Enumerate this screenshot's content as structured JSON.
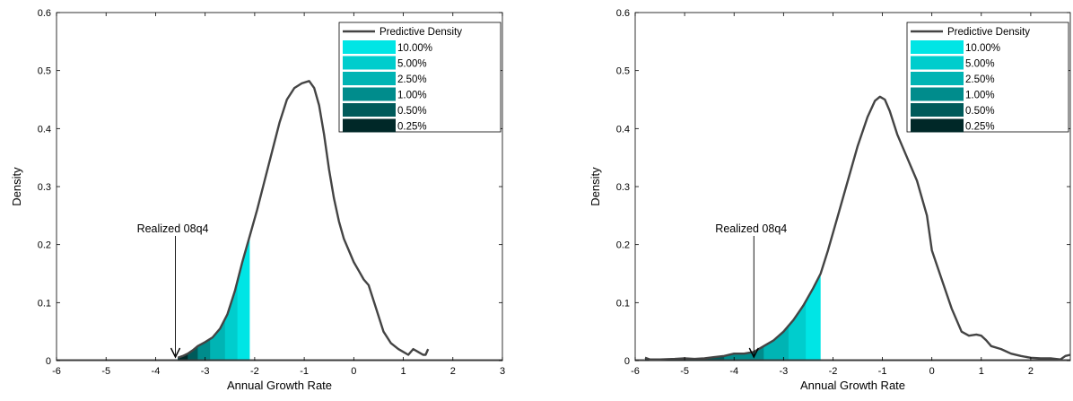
{
  "chart_data": [
    {
      "type": "area",
      "title": "",
      "xlabel": "Annual Growth Rate",
      "ylabel": "Density",
      "xlim": [
        -6,
        3
      ],
      "ylim": [
        0,
        0.6
      ],
      "xticks": [
        -6,
        -5,
        -4,
        -3,
        -2,
        -1,
        0,
        1,
        2,
        3
      ],
      "yticks": [
        0,
        0.1,
        0.2,
        0.3,
        0.4,
        0.5,
        0.6
      ],
      "xtick_labels": [
        "-6",
        "-5",
        "-4",
        "-3",
        "-2",
        "-1",
        "0",
        "1",
        "2",
        "3"
      ],
      "ytick_labels": [
        "0",
        "0.1",
        "0.2",
        "0.3",
        "0.4",
        "0.5",
        "0.6"
      ],
      "grid": false,
      "legend_position": "top-right",
      "legend_title": "Predictive Density",
      "series": [
        {
          "name": "Predictive Density",
          "color": "#444444",
          "x": [
            -3.55,
            -3.45,
            -3.35,
            -3.25,
            -3.15,
            -3.0,
            -2.85,
            -2.7,
            -2.55,
            -2.4,
            -2.25,
            -2.1,
            -1.95,
            -1.8,
            -1.65,
            -1.5,
            -1.35,
            -1.2,
            -1.05,
            -0.9,
            -0.8,
            -0.7,
            -0.6,
            -0.5,
            -0.4,
            -0.3,
            -0.2,
            -0.1,
            0.0,
            0.1,
            0.2,
            0.3,
            0.45,
            0.6,
            0.75,
            0.9,
            1.0,
            1.1,
            1.2,
            1.3,
            1.4,
            1.45,
            1.5
          ],
          "y": [
            0.005,
            0.008,
            0.012,
            0.018,
            0.025,
            0.032,
            0.04,
            0.055,
            0.08,
            0.12,
            0.17,
            0.215,
            0.26,
            0.31,
            0.36,
            0.41,
            0.45,
            0.47,
            0.478,
            0.482,
            0.47,
            0.44,
            0.39,
            0.33,
            0.28,
            0.24,
            0.21,
            0.19,
            0.17,
            0.155,
            0.14,
            0.13,
            0.09,
            0.05,
            0.03,
            0.02,
            0.015,
            0.01,
            0.02,
            0.015,
            0.01,
            0.01,
            0.02
          ]
        }
      ],
      "shaded_quantiles": [
        {
          "label": "10.00%",
          "upper_x": -2.1,
          "color": "#00e5e5"
        },
        {
          "label": "5.00%",
          "upper_x": -2.35,
          "color": "#00cdcd"
        },
        {
          "label": "2.50%",
          "upper_x": -2.6,
          "color": "#00b4b4"
        },
        {
          "label": "1.00%",
          "upper_x": -2.9,
          "color": "#008c8c"
        },
        {
          "label": "0.50%",
          "upper_x": -3.15,
          "color": "#005a5a"
        },
        {
          "label": "0.25%",
          "upper_x": -3.35,
          "color": "#002828"
        }
      ],
      "annotation": {
        "text": "Realized 08q4",
        "x": -3.6,
        "y": 0.0
      }
    },
    {
      "type": "area",
      "title": "",
      "xlabel": "Annual Growth Rate",
      "ylabel": "Density",
      "xlim": [
        -6,
        2.8
      ],
      "ylim": [
        0,
        0.6
      ],
      "xticks": [
        -6,
        -5,
        -4,
        -3,
        -2,
        -1,
        0,
        1,
        2
      ],
      "yticks": [
        0,
        0.1,
        0.2,
        0.3,
        0.4,
        0.5,
        0.6
      ],
      "xtick_labels": [
        "-6",
        "-5",
        "-4",
        "-3",
        "-2",
        "-1",
        "0",
        "1",
        "2"
      ],
      "ytick_labels": [
        "0",
        "0.1",
        "0.2",
        "0.3",
        "0.4",
        "0.5",
        "0.6"
      ],
      "grid": false,
      "legend_position": "top-right",
      "legend_title": "Predictive Density",
      "series": [
        {
          "name": "Predictive Density",
          "color": "#444444",
          "x": [
            -5.8,
            -5.7,
            -5.5,
            -5.2,
            -5.0,
            -4.8,
            -4.6,
            -4.4,
            -4.2,
            -4.0,
            -3.8,
            -3.6,
            -3.4,
            -3.2,
            -3.0,
            -2.8,
            -2.6,
            -2.4,
            -2.25,
            -2.1,
            -1.9,
            -1.7,
            -1.5,
            -1.3,
            -1.15,
            -1.05,
            -0.95,
            -0.85,
            -0.7,
            -0.5,
            -0.3,
            -0.1,
            0.0,
            0.2,
            0.4,
            0.6,
            0.75,
            0.9,
            1.0,
            1.1,
            1.2,
            1.4,
            1.6,
            1.8,
            2.0,
            2.2,
            2.4,
            2.6,
            2.7,
            2.8
          ],
          "y": [
            0.005,
            0.002,
            0.002,
            0.003,
            0.004,
            0.003,
            0.004,
            0.006,
            0.008,
            0.012,
            0.012,
            0.015,
            0.025,
            0.035,
            0.05,
            0.07,
            0.095,
            0.125,
            0.15,
            0.19,
            0.25,
            0.31,
            0.37,
            0.42,
            0.448,
            0.455,
            0.45,
            0.43,
            0.39,
            0.35,
            0.31,
            0.25,
            0.19,
            0.14,
            0.09,
            0.05,
            0.043,
            0.045,
            0.043,
            0.035,
            0.025,
            0.02,
            0.012,
            0.008,
            0.005,
            0.004,
            0.004,
            0.002,
            0.008,
            0.01
          ]
        }
      ],
      "shaded_quantiles": [
        {
          "label": "10.00%",
          "upper_x": -2.25,
          "color": "#00e5e5"
        },
        {
          "label": "5.00%",
          "upper_x": -2.55,
          "color": "#00cdcd"
        },
        {
          "label": "2.50%",
          "upper_x": -2.9,
          "color": "#00b4b4"
        },
        {
          "label": "1.00%",
          "upper_x": -3.4,
          "color": "#008c8c"
        },
        {
          "label": "0.50%",
          "upper_x": -4.2,
          "color": "#005a5a"
        },
        {
          "label": "0.25%",
          "upper_x": -5.0,
          "color": "#002828"
        }
      ],
      "annotation": {
        "text": "Realized 08q4",
        "x": -3.6,
        "y": 0.0
      }
    }
  ]
}
